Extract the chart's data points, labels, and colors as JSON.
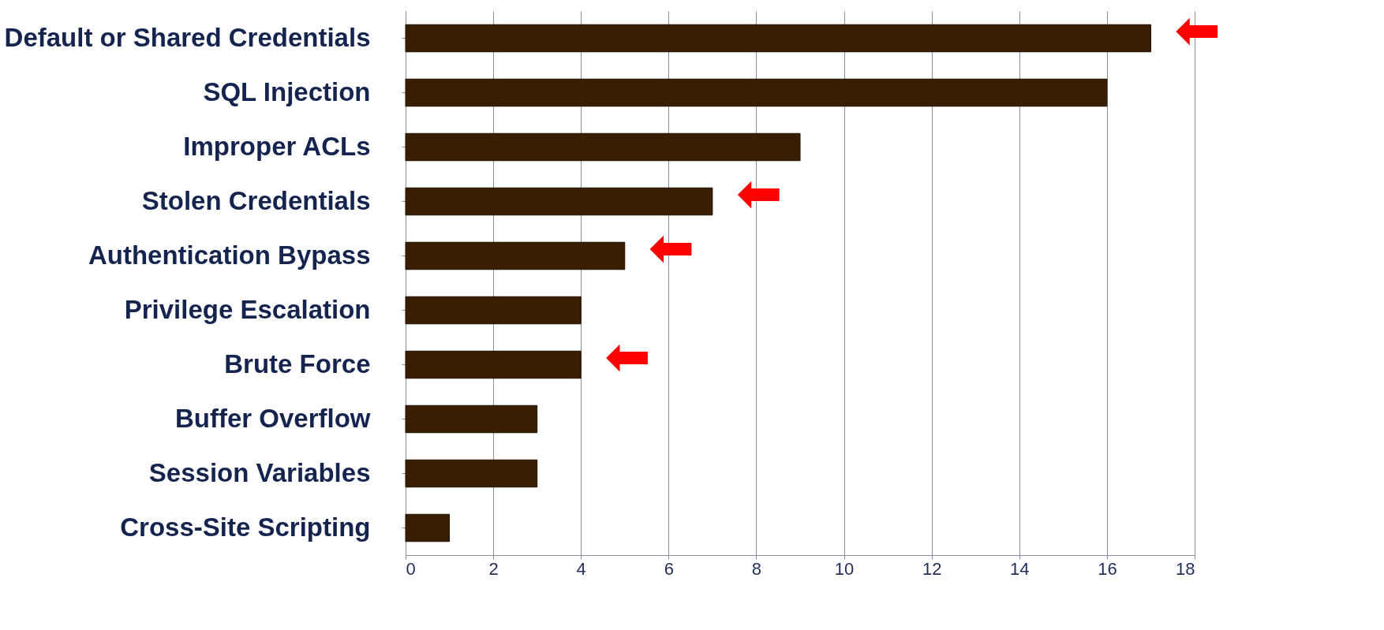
{
  "chart_data": {
    "type": "bar",
    "orientation": "horizontal",
    "categories": [
      "Default or Shared Credentials",
      "SQL Injection",
      "Improper ACLs",
      "Stolen Credentials",
      "Authentication Bypass",
      "Privilege Escalation",
      "Brute Force",
      "Buffer Overflow",
      "Session Variables",
      "Cross-Site Scripting"
    ],
    "values": [
      17,
      16,
      9,
      7,
      5,
      4,
      4,
      3,
      3,
      1
    ],
    "color": "#3a1e02",
    "xlim": [
      0,
      18
    ],
    "xticks": [
      0,
      2,
      4,
      6,
      8,
      10,
      12,
      14,
      16,
      18
    ],
    "grid": "x",
    "annotations": [
      {
        "text": "⬅",
        "x": 17,
        "y": "Default or Shared Credentials"
      },
      {
        "text": "⬅",
        "x": 7,
        "y": "Stolen Credentials"
      },
      {
        "text": "⬅",
        "x": 5,
        "y": "Authentication Bypass"
      },
      {
        "text": "⬅",
        "x": 4,
        "y": "Brute Force"
      }
    ]
  }
}
